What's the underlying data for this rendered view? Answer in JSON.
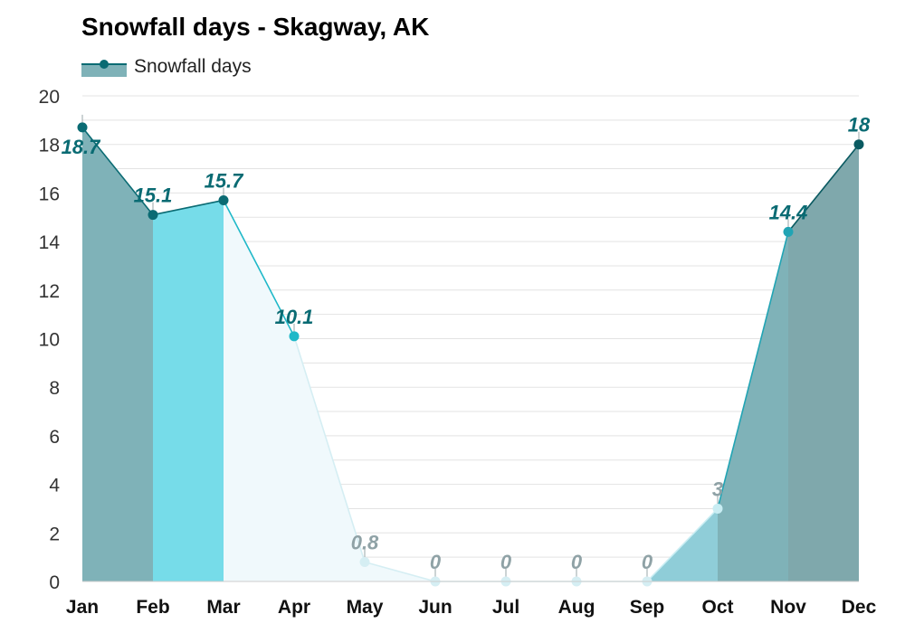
{
  "chart_data": {
    "type": "area",
    "title": "Snowfall days - Skagway, AK",
    "categories": [
      "Jan",
      "Feb",
      "Mar",
      "Apr",
      "May",
      "Jun",
      "Jul",
      "Aug",
      "Sep",
      "Oct",
      "Nov",
      "Dec"
    ],
    "series": [
      {
        "name": "Snowfall days",
        "values": [
          18.7,
          15.1,
          15.7,
          10.1,
          0.8,
          0,
          0,
          0,
          0,
          3,
          14.4,
          18
        ],
        "labels": [
          "18.7",
          "15.1",
          "15.7",
          "10.1",
          "0.8",
          "0",
          "0",
          "0",
          "0",
          "3",
          "14.4",
          "18"
        ]
      }
    ],
    "ylim": [
      0,
      20
    ],
    "yticks": [
      0,
      2,
      4,
      6,
      8,
      10,
      12,
      14,
      16,
      18,
      20
    ],
    "xlabel": "",
    "ylabel": "",
    "grid": true,
    "legend": "top-left",
    "month_colors": [
      "#7fb2b8",
      "#7fb2b8",
      "#76dce9",
      "#f0f9fc",
      "#f0f9fc",
      "#f0f9fc",
      "#f0f9fc",
      "#f0f9fc",
      "#c5eef5",
      "#8fcdd8",
      "#7fb2b8",
      "#7fa8ac"
    ],
    "point_colors": [
      "#0a6b73",
      "#0a6b73",
      "#0a6b73",
      "#1eb8c8",
      "#d5eef3",
      "#d5eef3",
      "#d5eef3",
      "#d5eef3",
      "#d5eef3",
      "#c9edf3",
      "#21a4b4",
      "#0a5a61"
    ],
    "label_colors": [
      "#0a6b73",
      "#0a6b73",
      "#0a6b73",
      "#0a6b73",
      "#8fa2a6",
      "#8fa2a6",
      "#8fa2a6",
      "#8fa2a6",
      "#8fa2a6",
      "#8fa2a6",
      "#0a6b73",
      "#0a6b73"
    ],
    "line_color": "#0a6b73",
    "grid_color": "#e3e3e3"
  }
}
